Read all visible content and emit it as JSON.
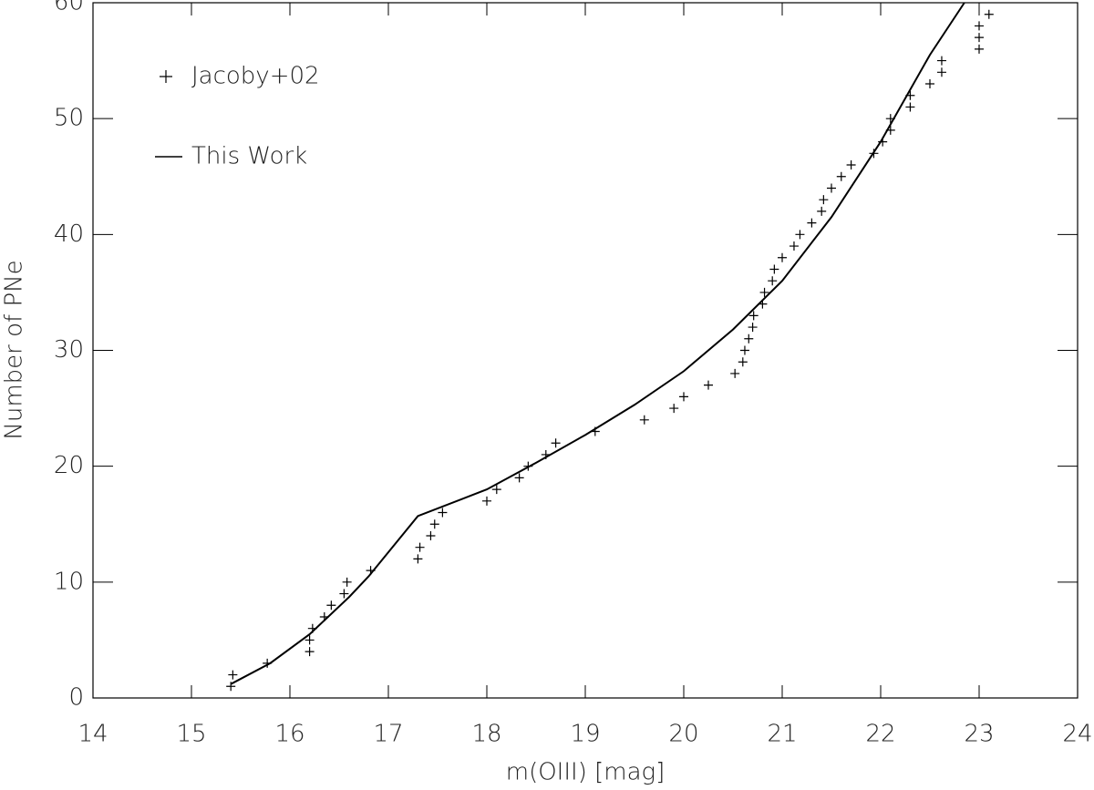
{
  "chart_data": {
    "type": "scatter",
    "xlabel": "m(OIII) [mag]",
    "ylabel": "Number of PNe",
    "xlim": [
      14,
      24
    ],
    "ylim": [
      0,
      60
    ],
    "xticks": [
      14,
      15,
      16,
      17,
      18,
      19,
      20,
      21,
      22,
      23,
      24
    ],
    "yticks": [
      0,
      10,
      20,
      30,
      40,
      50,
      60
    ],
    "legend": "upper left",
    "series": [
      {
        "name": "Jacoby+02",
        "type": "scatter",
        "marker": "plus",
        "color": "#000000",
        "x": [
          15.4,
          15.42,
          15.77,
          16.2,
          16.2,
          16.23,
          16.35,
          16.42,
          16.55,
          16.58,
          16.82,
          17.3,
          17.32,
          17.43,
          17.47,
          17.55,
          18.0,
          18.1,
          18.33,
          18.42,
          18.6,
          18.7,
          19.1,
          19.6,
          19.9,
          20.0,
          20.25,
          20.52,
          20.6,
          20.62,
          20.66,
          20.7,
          20.71,
          20.8,
          20.82,
          20.9,
          20.92,
          21.0,
          21.12,
          21.18,
          21.3,
          21.4,
          21.42,
          21.5,
          21.6,
          21.7,
          21.93,
          22.02,
          22.1,
          22.1,
          22.3,
          22.3,
          22.5,
          22.62,
          22.62,
          23.0,
          23.0,
          23.0,
          23.1
        ],
        "values": [
          1,
          2,
          3,
          4,
          5,
          6,
          7,
          8,
          9,
          10,
          11,
          12,
          13,
          14,
          15,
          16,
          17,
          18,
          19,
          20,
          21,
          22,
          23,
          24,
          25,
          26,
          27,
          28,
          29,
          30,
          31,
          32,
          33,
          34,
          35,
          36,
          37,
          38,
          39,
          40,
          41,
          42,
          43,
          44,
          45,
          46,
          47,
          48,
          49,
          50,
          51,
          52,
          53,
          54,
          55,
          56,
          57,
          58,
          59
        ]
      },
      {
        "name": "This Work",
        "type": "line",
        "color": "#000000",
        "x": [
          15.4,
          15.8,
          16.2,
          16.6,
          16.8,
          17.3,
          18.0,
          18.5,
          19.0,
          19.5,
          20.0,
          20.5,
          21.0,
          21.5,
          22.0,
          22.5,
          22.85
        ],
        "values": [
          1.2,
          3,
          5.5,
          8.7,
          10.5,
          15.7,
          18,
          20.3,
          22.7,
          25.3,
          28.2,
          31.8,
          36,
          41.5,
          48,
          55.5,
          60
        ]
      }
    ]
  }
}
